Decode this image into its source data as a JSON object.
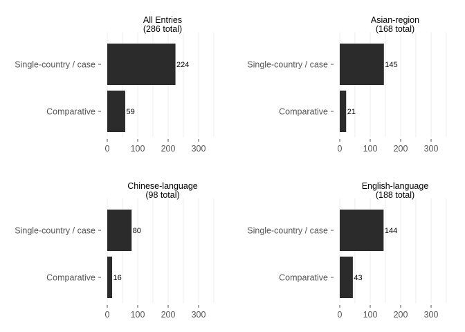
{
  "colors": {
    "bar": "#2b2b2b",
    "grid": "#ececec",
    "axis_text": "#555555",
    "title_text": "#000000",
    "background": "#ffffff"
  },
  "chart_data": [
    {
      "type": "bar",
      "orientation": "horizontal",
      "title": "All Entries",
      "subtitle": "(286 total)",
      "categories": [
        "Single-country / case",
        "Comparative"
      ],
      "values": [
        224,
        59
      ],
      "xticks": [
        "0",
        "100",
        "200",
        "300"
      ],
      "xlim": [
        0,
        350
      ],
      "grid": true,
      "legend": "none"
    },
    {
      "type": "bar",
      "orientation": "horizontal",
      "title": "Asian-region",
      "subtitle": "(168 total)",
      "categories": [
        "Single-country / case",
        "Comparative"
      ],
      "values": [
        145,
        21
      ],
      "xticks": [
        "0",
        "100",
        "200",
        "300"
      ],
      "xlim": [
        0,
        350
      ],
      "grid": true,
      "legend": "none"
    },
    {
      "type": "bar",
      "orientation": "horizontal",
      "title": "Chinese-language",
      "subtitle": "(98 total)",
      "categories": [
        "Single-country / case",
        "Comparative"
      ],
      "values": [
        80,
        16
      ],
      "xticks": [
        "0",
        "100",
        "200",
        "300"
      ],
      "xlim": [
        0,
        350
      ],
      "grid": true,
      "legend": "none"
    },
    {
      "type": "bar",
      "orientation": "horizontal",
      "title": "English-language",
      "subtitle": "(188 total)",
      "categories": [
        "Single-country / case",
        "Comparative"
      ],
      "values": [
        144,
        43
      ],
      "xticks": [
        "0",
        "100",
        "200",
        "300"
      ],
      "xlim": [
        0,
        350
      ],
      "grid": true,
      "legend": "none"
    }
  ]
}
